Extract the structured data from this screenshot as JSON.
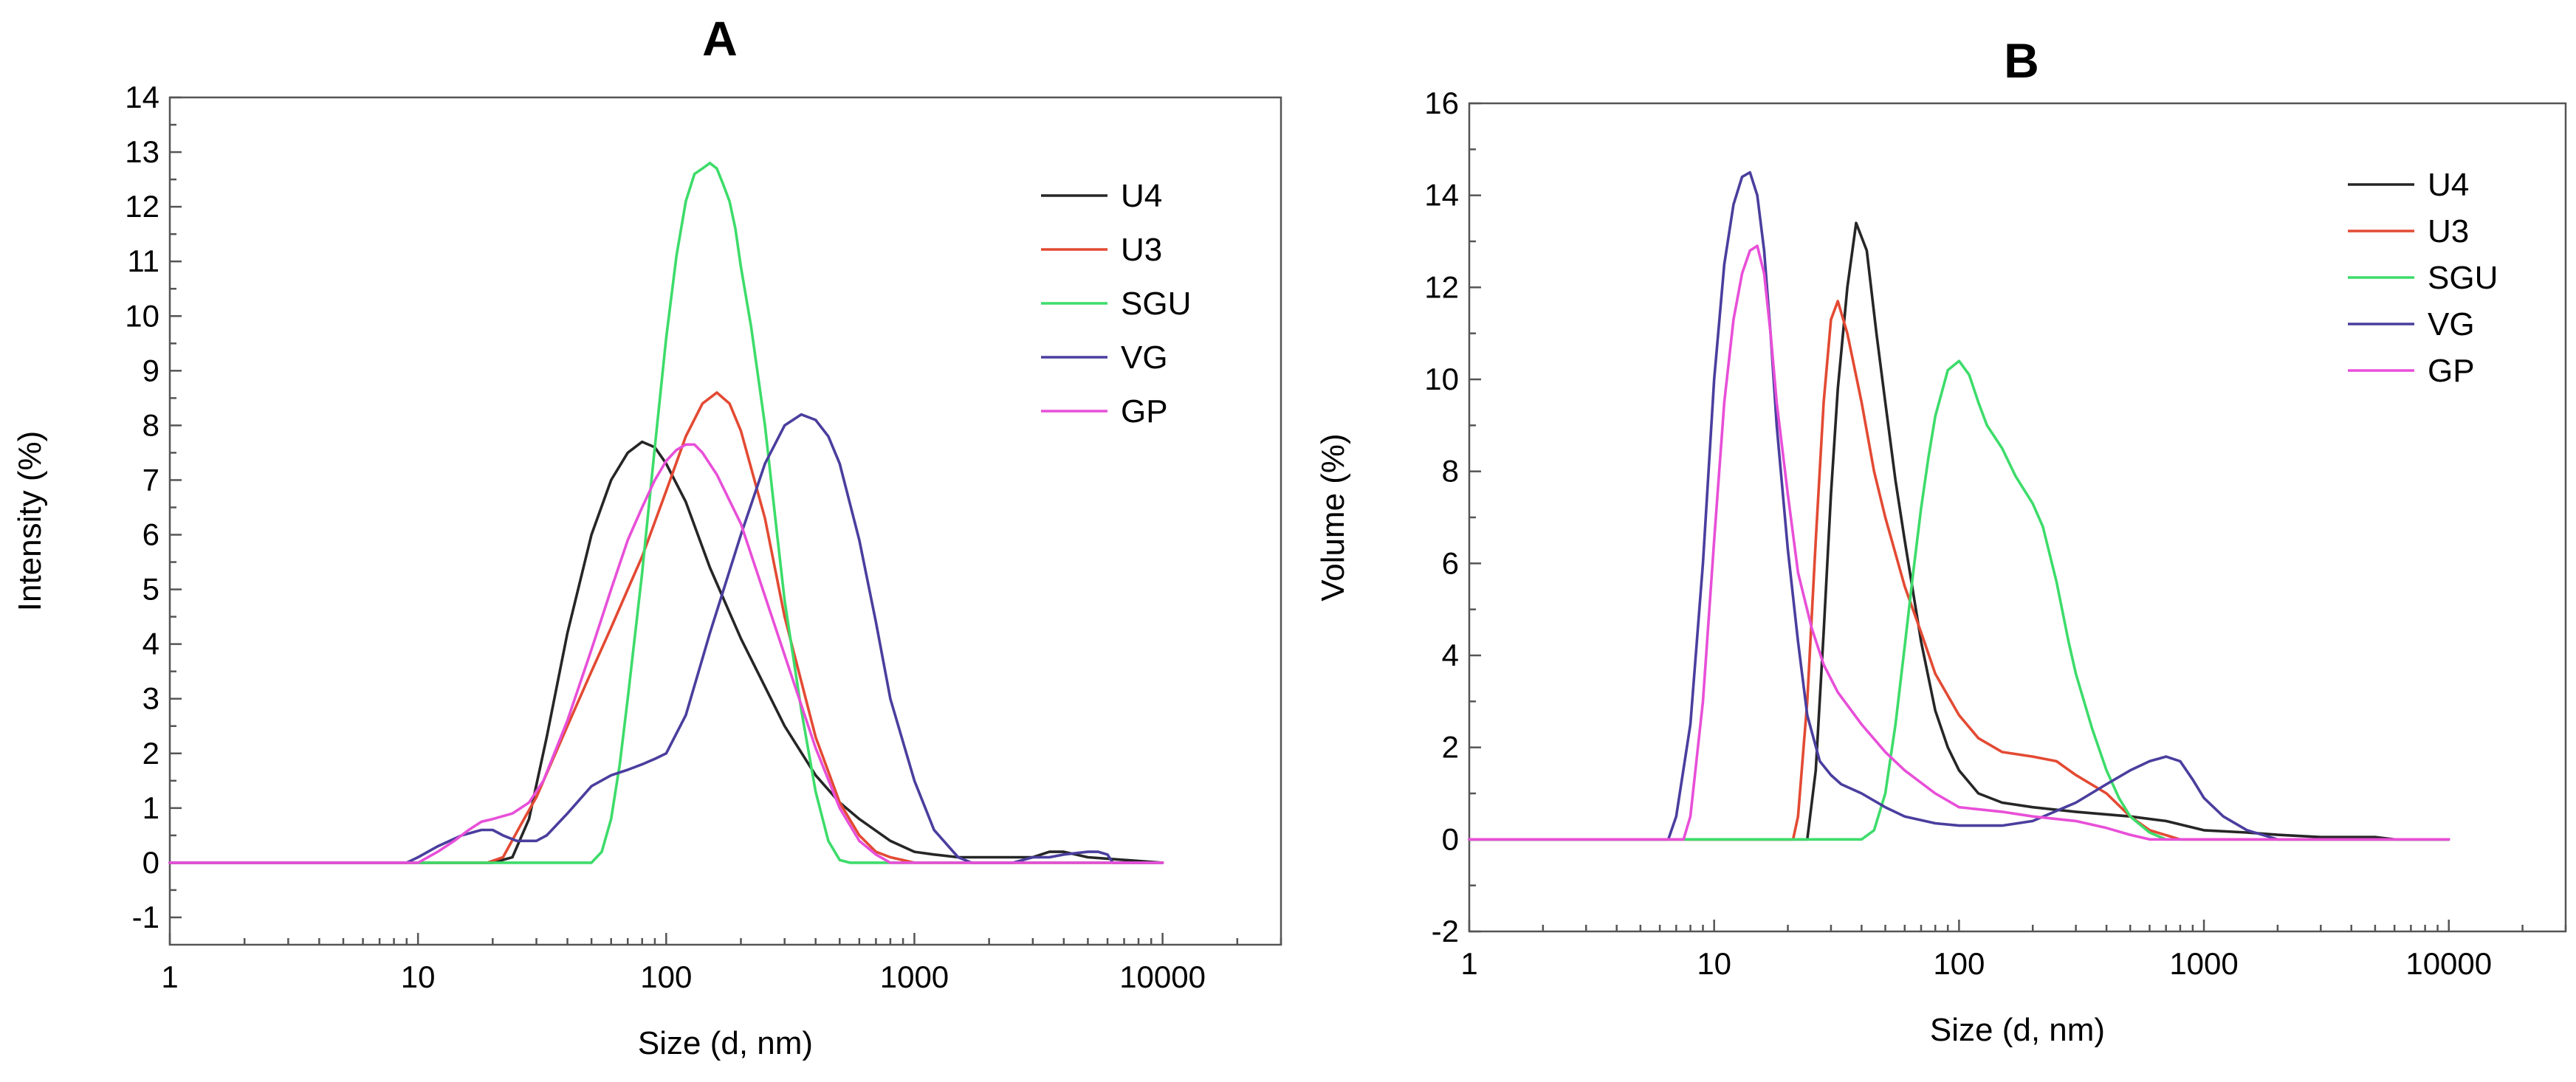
{
  "colors": {
    "U4": "#262626",
    "U3": "#e34a33",
    "SGU": "#3ddc6a",
    "VG": "#4a3e9e",
    "GP": "#e84fd8"
  },
  "chart_data": [
    {
      "type": "line",
      "panel_label": "A",
      "title": "",
      "xlabel": "Size (d, nm)",
      "ylabel": "Intensity (%)",
      "xscale": "log",
      "xlim": [
        1,
        30000
      ],
      "ylim": [
        -1.5,
        14
      ],
      "xticks": [
        1,
        10,
        100,
        1000,
        10000
      ],
      "xtick_labels": [
        "1",
        "10",
        "100",
        "1000",
        "10000"
      ],
      "yticks": [
        -1,
        0,
        1,
        2,
        3,
        4,
        5,
        6,
        7,
        8,
        9,
        10,
        11,
        12,
        13,
        14
      ],
      "ytick_labels": [
        "-1",
        "0",
        "1",
        "2",
        "3",
        "4",
        "5",
        "6",
        "7",
        "8",
        "9",
        "10",
        "11",
        "12",
        "13",
        "14"
      ],
      "legend": [
        "U4",
        "U3",
        "SGU",
        "VG",
        "GP"
      ],
      "legend_position": "top-right",
      "series": [
        {
          "name": "U4",
          "x": [
            1,
            20,
            24,
            28,
            33,
            40,
            50,
            60,
            70,
            80,
            90,
            100,
            120,
            150,
            200,
            300,
            400,
            500,
            600,
            800,
            1000,
            1200,
            1500,
            2000,
            3000,
            3500,
            4000,
            5000,
            10000
          ],
          "y": [
            0,
            0,
            0.1,
            0.8,
            2.3,
            4.2,
            6.0,
            7.0,
            7.5,
            7.7,
            7.6,
            7.3,
            6.6,
            5.4,
            4.1,
            2.5,
            1.6,
            1.1,
            0.8,
            0.4,
            0.2,
            0.15,
            0.1,
            0.1,
            0.1,
            0.2,
            0.2,
            0.1,
            0
          ]
        },
        {
          "name": "U3",
          "x": [
            1,
            19,
            22,
            26,
            30,
            40,
            50,
            60,
            70,
            80,
            100,
            120,
            140,
            160,
            180,
            200,
            250,
            300,
            400,
            500,
            600,
            700,
            800,
            1000,
            10000
          ],
          "y": [
            0,
            0,
            0.1,
            0.7,
            1.2,
            2.5,
            3.5,
            4.3,
            5.0,
            5.6,
            6.8,
            7.8,
            8.4,
            8.6,
            8.4,
            7.9,
            6.3,
            4.5,
            2.3,
            1.1,
            0.5,
            0.2,
            0.1,
            0,
            0
          ]
        },
        {
          "name": "SGU",
          "x": [
            1,
            50,
            55,
            60,
            65,
            70,
            80,
            90,
            100,
            110,
            120,
            130,
            140,
            150,
            160,
            170,
            180,
            190,
            200,
            220,
            250,
            280,
            300,
            350,
            400,
            450,
            500,
            550,
            600,
            10000
          ],
          "y": [
            0,
            0,
            0.2,
            0.8,
            1.8,
            3.0,
            5.3,
            7.6,
            9.6,
            11.1,
            12.1,
            12.6,
            12.7,
            12.8,
            12.7,
            12.4,
            12.1,
            11.6,
            10.9,
            9.8,
            8.0,
            6.0,
            4.8,
            2.8,
            1.3,
            0.4,
            0.05,
            0,
            0,
            0
          ]
        },
        {
          "name": "VG",
          "x": [
            1,
            9,
            10,
            12,
            15,
            18,
            20,
            22,
            25,
            28,
            30,
            33,
            40,
            50,
            60,
            70,
            80,
            90,
            100,
            120,
            150,
            200,
            250,
            300,
            350,
            400,
            450,
            500,
            600,
            700,
            800,
            1000,
            1200,
            1500,
            1700,
            2000,
            2500,
            3000,
            3500,
            4000,
            5000,
            5500,
            6000,
            6300,
            10000
          ],
          "y": [
            0,
            0,
            0.1,
            0.3,
            0.5,
            0.6,
            0.6,
            0.5,
            0.4,
            0.4,
            0.4,
            0.5,
            0.9,
            1.4,
            1.6,
            1.7,
            1.8,
            1.9,
            2.0,
            2.7,
            4.2,
            6.0,
            7.3,
            8.0,
            8.2,
            8.1,
            7.8,
            7.3,
            5.9,
            4.4,
            3.0,
            1.5,
            0.6,
            0.1,
            0,
            0,
            0,
            0.1,
            0.1,
            0.15,
            0.2,
            0.2,
            0.15,
            0,
            0
          ]
        },
        {
          "name": "GP",
          "x": [
            1,
            10,
            12,
            14,
            16,
            18,
            20,
            24,
            28,
            32,
            40,
            50,
            60,
            70,
            80,
            90,
            100,
            110,
            120,
            130,
            140,
            160,
            200,
            300,
            400,
            500,
            600,
            700,
            800,
            10000
          ],
          "y": [
            0,
            0,
            0.2,
            0.4,
            0.6,
            0.75,
            0.8,
            0.9,
            1.1,
            1.5,
            2.6,
            3.9,
            5.0,
            5.9,
            6.5,
            7.0,
            7.35,
            7.55,
            7.65,
            7.65,
            7.5,
            7.1,
            6.2,
            3.8,
            2.1,
            1.0,
            0.4,
            0.15,
            0,
            0
          ]
        }
      ]
    },
    {
      "type": "line",
      "panel_label": "B",
      "title": "",
      "xlabel": "Size (d, nm)",
      "ylabel": "Volume (%)",
      "xscale": "log",
      "xlim": [
        1,
        30000
      ],
      "ylim": [
        -2,
        16
      ],
      "xticks": [
        1,
        10,
        100,
        1000,
        10000
      ],
      "xtick_labels": [
        "1",
        "10",
        "100",
        "1000",
        "10000"
      ],
      "yticks": [
        -2,
        0,
        2,
        4,
        6,
        8,
        10,
        12,
        14,
        16
      ],
      "ytick_labels": [
        "-2",
        "0",
        "2",
        "4",
        "6",
        "8",
        "10",
        "12",
        "14",
        "16"
      ],
      "legend": [
        "U4",
        "U3",
        "SGU",
        "VG",
        "GP"
      ],
      "legend_position": "top-right",
      "series": [
        {
          "name": "U4",
          "x": [
            1,
            24,
            26,
            28,
            30,
            32,
            35,
            38,
            42,
            46,
            50,
            55,
            60,
            70,
            80,
            90,
            100,
            120,
            150,
            200,
            300,
            500,
            700,
            1000,
            1500,
            2000,
            3000,
            5000,
            6000,
            10000
          ],
          "y": [
            0,
            0,
            1.5,
            4.5,
            7.5,
            9.8,
            12.0,
            13.4,
            12.8,
            11.0,
            9.5,
            7.8,
            6.5,
            4.3,
            2.8,
            2.0,
            1.5,
            1.0,
            0.8,
            0.7,
            0.6,
            0.5,
            0.4,
            0.2,
            0.15,
            0.1,
            0.05,
            0.05,
            0,
            0
          ]
        },
        {
          "name": "U3",
          "x": [
            1,
            21,
            22,
            24,
            26,
            28,
            30,
            32,
            35,
            40,
            45,
            50,
            60,
            70,
            80,
            100,
            120,
            150,
            200,
            250,
            300,
            400,
            500,
            600,
            800,
            10000
          ],
          "y": [
            0,
            0,
            0.5,
            3.0,
            6.5,
            9.5,
            11.3,
            11.7,
            11.0,
            9.5,
            8.0,
            7.0,
            5.5,
            4.5,
            3.6,
            2.7,
            2.2,
            1.9,
            1.8,
            1.7,
            1.4,
            1.0,
            0.5,
            0.2,
            0,
            0
          ]
        },
        {
          "name": "SGU",
          "x": [
            1,
            40,
            45,
            50,
            55,
            60,
            65,
            70,
            75,
            80,
            90,
            100,
            110,
            120,
            130,
            150,
            170,
            200,
            220,
            250,
            280,
            300,
            350,
            400,
            450,
            500,
            600,
            700,
            10000
          ],
          "y": [
            0,
            0,
            0.2,
            1.0,
            2.5,
            4.2,
            5.8,
            7.2,
            8.3,
            9.2,
            10.2,
            10.4,
            10.1,
            9.5,
            9.0,
            8.5,
            7.9,
            7.3,
            6.8,
            5.6,
            4.3,
            3.6,
            2.4,
            1.5,
            0.9,
            0.5,
            0.15,
            0,
            0
          ]
        },
        {
          "name": "VG",
          "x": [
            1,
            6.5,
            7,
            8,
            9,
            10,
            11,
            12,
            13,
            14,
            15,
            16,
            17,
            18,
            20,
            22,
            24,
            27,
            30,
            33,
            40,
            50,
            60,
            80,
            100,
            150,
            200,
            300,
            400,
            500,
            600,
            700,
            800,
            900,
            1000,
            1200,
            1500,
            2000,
            10000
          ],
          "y": [
            0,
            0,
            0.5,
            2.5,
            6.0,
            10.0,
            12.5,
            13.8,
            14.4,
            14.5,
            14.0,
            12.8,
            11.0,
            9.0,
            6.3,
            4.3,
            2.7,
            1.7,
            1.4,
            1.2,
            1.0,
            0.7,
            0.5,
            0.35,
            0.3,
            0.3,
            0.4,
            0.8,
            1.2,
            1.5,
            1.7,
            1.8,
            1.7,
            1.3,
            0.9,
            0.5,
            0.2,
            0,
            0
          ]
        },
        {
          "name": "GP",
          "x": [
            1,
            7.5,
            8,
            9,
            10,
            11,
            12,
            13,
            14,
            15,
            16,
            17,
            18,
            20,
            22,
            25,
            28,
            32,
            40,
            50,
            60,
            80,
            100,
            150,
            200,
            300,
            400,
            500,
            600,
            10000
          ],
          "y": [
            0,
            0,
            0.5,
            3.0,
            6.5,
            9.5,
            11.3,
            12.3,
            12.8,
            12.9,
            12.3,
            11.0,
            9.5,
            7.5,
            5.8,
            4.6,
            3.8,
            3.2,
            2.5,
            1.9,
            1.5,
            1.0,
            0.7,
            0.6,
            0.5,
            0.4,
            0.25,
            0.1,
            0,
            0
          ]
        }
      ]
    }
  ]
}
